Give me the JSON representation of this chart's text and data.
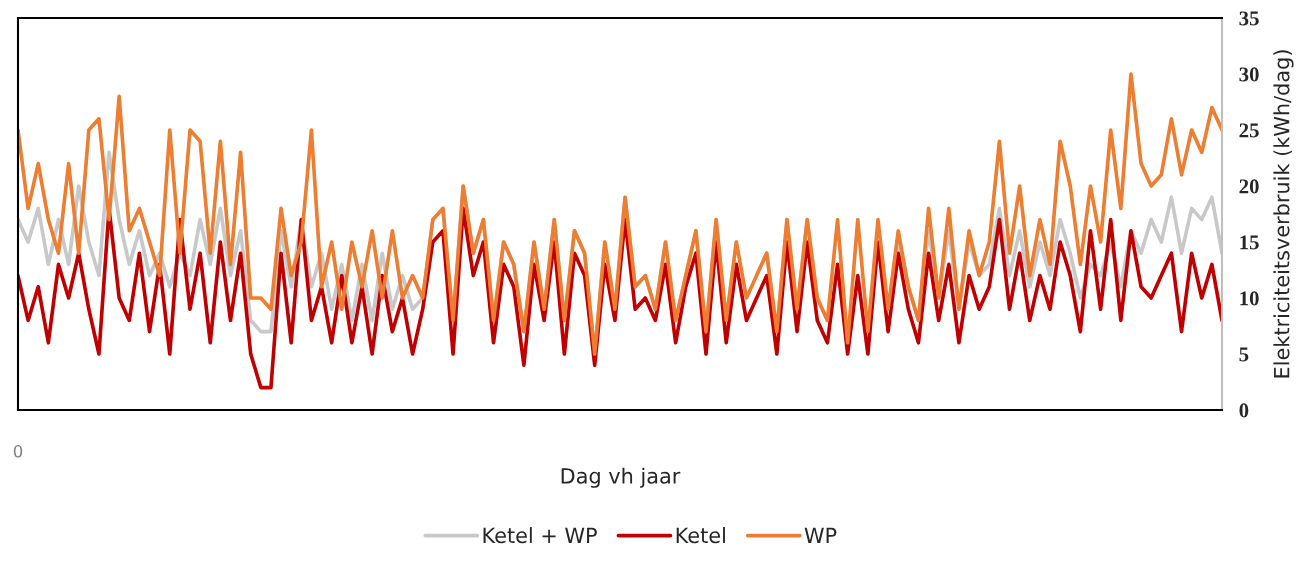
{
  "chart_data": {
    "type": "line",
    "xlabel": "Dag vh jaar",
    "ylabel": "Elektriciteitsverbruik (kWh/dag)",
    "categories": [
      null,
      null,
      null,
      null,
      null,
      null,
      null,
      null,
      null,
      null,
      null,
      null,
      null,
      null,
      null,
      null,
      null,
      null,
      null,
      null,
      null,
      null,
      null,
      null,
      null,
      null,
      null,
      null,
      null,
      null,
      null,
      null,
      null,
      null,
      null,
      null,
      null,
      null,
      null,
      null,
      null,
      null,
      null,
      null,
      null,
      null,
      null,
      null,
      null,
      null,
      null,
      null,
      null,
      null,
      null,
      null,
      null,
      null,
      null,
      null,
      null,
      null,
      null,
      null,
      null,
      null,
      null,
      null,
      null,
      null,
      null,
      null,
      null,
      null,
      null,
      null,
      null,
      null,
      null,
      null,
      null,
      null,
      null,
      null,
      null,
      null,
      null,
      null,
      null,
      null,
      null,
      null,
      null,
      null,
      null,
      null,
      null,
      null,
      null,
      null,
      null,
      null,
      null,
      null,
      null,
      null,
      null,
      null,
      null,
      null,
      null,
      null,
      null,
      null,
      null,
      null,
      null,
      null,
      null,
      null
    ],
    "series": [
      {
        "name": "Ketel + WP",
        "color": "#c8c8c8",
        "values": [
          17,
          15,
          18,
          13,
          17,
          13,
          20,
          15,
          12,
          23,
          17,
          13,
          16,
          12,
          14,
          11,
          14,
          12,
          17,
          13,
          18,
          12,
          16,
          8,
          7,
          7,
          16,
          11,
          17,
          11,
          14,
          9,
          13,
          8,
          13,
          8,
          14,
          9,
          12,
          9,
          10,
          17,
          18,
          8,
          20,
          14,
          17,
          8,
          15,
          13,
          7,
          15,
          9,
          17,
          8,
          16,
          14,
          5,
          15,
          9,
          19,
          11,
          12,
          9,
          15,
          8,
          12,
          16,
          7,
          17,
          8,
          15,
          null,
          12,
          14,
          7,
          17,
          9,
          17,
          10,
          8,
          null,
          null,
          null,
          null,
          null,
          9,
          15,
          11,
          8,
          16,
          10,
          16,
          9,
          15,
          12,
          13,
          18,
          12,
          16,
          11,
          15,
          12,
          17,
          14,
          10,
          13,
          12,
          15,
          11,
          16,
          14,
          17,
          15,
          19,
          14,
          18,
          17,
          19,
          14
        ]
      },
      {
        "name": "Ketel",
        "color": "#c00000",
        "values": [
          12,
          8,
          11,
          6,
          13,
          10,
          14,
          9,
          5,
          18,
          10,
          8,
          14,
          7,
          13,
          5,
          17,
          9,
          14,
          6,
          15,
          8,
          14,
          5,
          2,
          2,
          14,
          6,
          17,
          8,
          11,
          6,
          12,
          6,
          11,
          5,
          12,
          7,
          10,
          5,
          9,
          15,
          16,
          5,
          18,
          12,
          15,
          6,
          13,
          11,
          4,
          13,
          8,
          15,
          5,
          14,
          12,
          4,
          13,
          8,
          17,
          9,
          10,
          8,
          13,
          6,
          11,
          14,
          5,
          15,
          6,
          13,
          8,
          10,
          12,
          5,
          15,
          7,
          15,
          8,
          6,
          13,
          5,
          12,
          5,
          15,
          7,
          14,
          9,
          6,
          14,
          8,
          13,
          6,
          12,
          9,
          11,
          17,
          9,
          14,
          8,
          12,
          9,
          15,
          12,
          7,
          16,
          9,
          17,
          8,
          16,
          11,
          10,
          12,
          14,
          7,
          14,
          10,
          13,
          8
        ]
      },
      {
        "name": "WP",
        "color": "#ed7d31",
        "values": [
          25,
          18,
          22,
          17,
          14,
          22,
          14,
          25,
          26,
          17,
          28,
          16,
          18,
          15,
          12,
          25,
          14,
          25,
          24,
          14,
          24,
          13,
          23,
          10,
          10,
          9,
          18,
          12,
          15,
          25,
          11,
          15,
          9,
          15,
          11,
          16,
          10,
          16,
          10,
          12,
          10,
          17,
          18,
          8,
          20,
          14,
          17,
          8,
          15,
          13,
          7,
          15,
          9,
          17,
          8,
          16,
          14,
          5,
          15,
          9,
          19,
          11,
          12,
          9,
          15,
          8,
          12,
          16,
          7,
          17,
          8,
          15,
          10,
          12,
          14,
          7,
          17,
          9,
          17,
          10,
          8,
          17,
          6,
          17,
          7,
          17,
          9,
          16,
          11,
          8,
          18,
          10,
          18,
          9,
          16,
          12,
          15,
          24,
          14,
          20,
          12,
          17,
          13,
          24,
          20,
          13,
          20,
          15,
          25,
          18,
          30,
          22,
          20,
          21,
          26,
          21,
          25,
          23,
          27,
          25
        ]
      }
    ],
    "ylim": [
      0,
      35
    ],
    "yticks": [
      0,
      5,
      10,
      15,
      20,
      25,
      30,
      35
    ],
    "annotations": [
      "0"
    ],
    "legend": "bottom",
    "grid": false,
    "marker": "none",
    "line_style": "solid"
  }
}
